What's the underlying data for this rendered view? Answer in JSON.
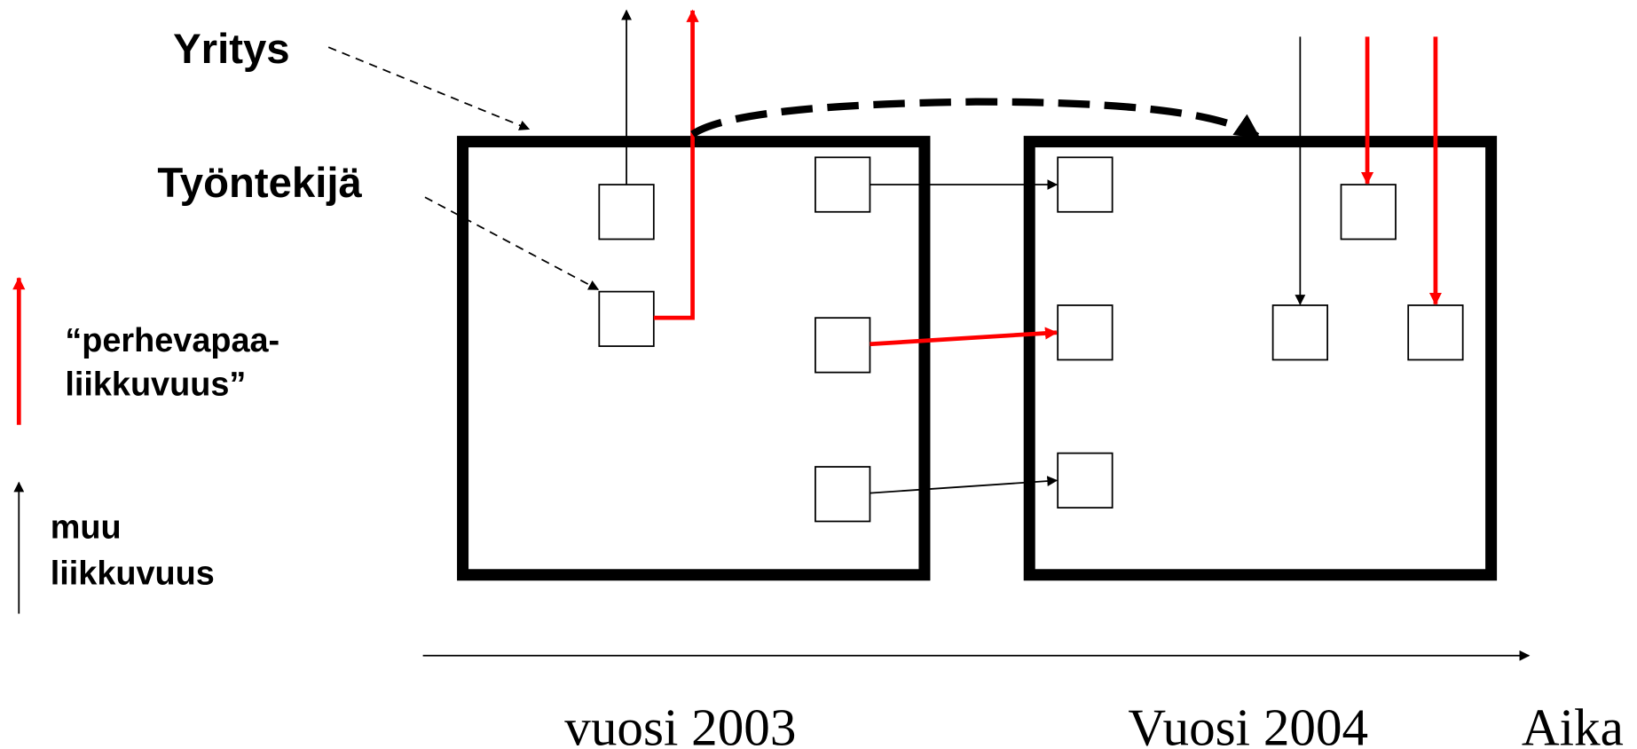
{
  "labels": {
    "company": "Yritys",
    "employee": "Työntekijä"
  },
  "legend": [
    {
      "lines": [
        "“perhevapaa-",
        "liikkuvuus”"
      ]
    },
    {
      "lines": [
        "muu",
        "liikkuvuus"
      ]
    }
  ],
  "timeline": {
    "years": [
      "vuosi 2003",
      "Vuosi 2004"
    ],
    "axis_label": "Aika"
  }
}
